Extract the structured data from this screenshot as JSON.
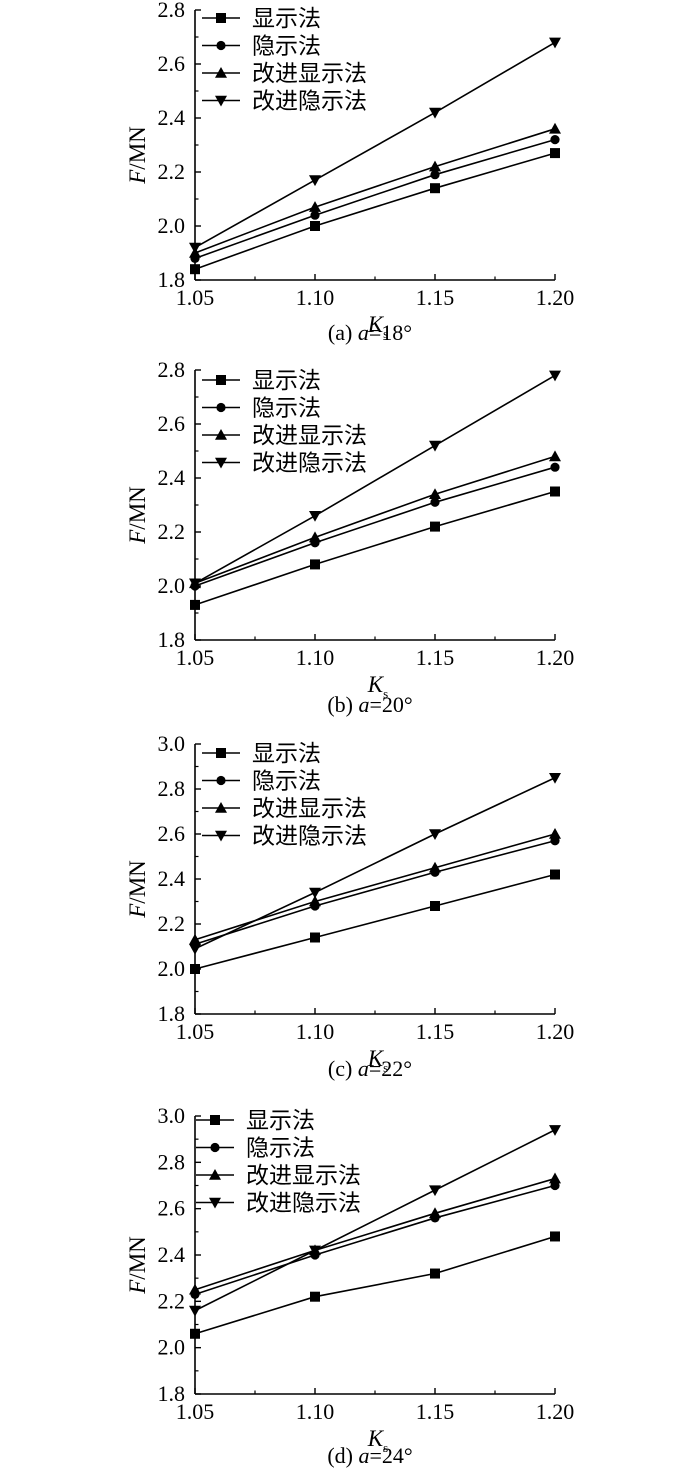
{
  "chart_data": [
    {
      "type": "line",
      "caption_prefix": "(a) ",
      "caption_var": "a",
      "caption_suffix": "=18°",
      "xlabel_main": "K",
      "xlabel_sub": "s",
      "ylabel_var": "F",
      "ylabel_unit": "/MN",
      "x": [
        1.05,
        1.1,
        1.15,
        1.2
      ],
      "x_ticks": [
        "1.05",
        "1.10",
        "1.15",
        "1.20"
      ],
      "xlim": [
        1.05,
        1.2
      ],
      "ylim": [
        1.8,
        2.8
      ],
      "y_ticks": [
        "1.8",
        "2.0",
        "2.2",
        "2.4",
        "2.6",
        "2.8"
      ],
      "grid": false,
      "legend_position": "top-left",
      "series": [
        {
          "name": "显示法",
          "marker": "square",
          "values": [
            1.84,
            2.0,
            2.14,
            2.27
          ]
        },
        {
          "name": "隐示法",
          "marker": "circle",
          "values": [
            1.88,
            2.04,
            2.19,
            2.32
          ]
        },
        {
          "name": "改进显示法",
          "marker": "triangle-up",
          "values": [
            1.9,
            2.07,
            2.22,
            2.36
          ]
        },
        {
          "name": "改进隐示法",
          "marker": "triangle-down",
          "values": [
            1.92,
            2.17,
            2.42,
            2.68
          ]
        }
      ]
    },
    {
      "type": "line",
      "caption_prefix": "(b) ",
      "caption_var": "a",
      "caption_suffix": "=20°",
      "xlabel_main": "K",
      "xlabel_sub": "s",
      "ylabel_var": "F",
      "ylabel_unit": "/MN",
      "x": [
        1.05,
        1.1,
        1.15,
        1.2
      ],
      "x_ticks": [
        "1.05",
        "1.10",
        "1.15",
        "1.20"
      ],
      "xlim": [
        1.05,
        1.2
      ],
      "ylim": [
        1.8,
        2.8
      ],
      "y_ticks": [
        "1.8",
        "2.0",
        "2.2",
        "2.4",
        "2.6",
        "2.8"
      ],
      "grid": false,
      "legend_position": "top-left",
      "series": [
        {
          "name": "显示法",
          "marker": "square",
          "values": [
            1.93,
            2.08,
            2.22,
            2.35
          ]
        },
        {
          "name": "隐示法",
          "marker": "circle",
          "values": [
            2.0,
            2.16,
            2.31,
            2.44
          ]
        },
        {
          "name": "改进显示法",
          "marker": "triangle-up",
          "values": [
            2.01,
            2.18,
            2.34,
            2.48
          ]
        },
        {
          "name": "改进隐示法",
          "marker": "triangle-down",
          "values": [
            2.01,
            2.26,
            2.52,
            2.78
          ]
        }
      ]
    },
    {
      "type": "line",
      "caption_prefix": "(c) ",
      "caption_var": "a",
      "caption_suffix": "=22°",
      "xlabel_main": "K",
      "xlabel_sub": "s",
      "ylabel_var": "F",
      "ylabel_unit": "/MN",
      "x": [
        1.05,
        1.1,
        1.15,
        1.2
      ],
      "x_ticks": [
        "1.05",
        "1.10",
        "1.15",
        "1.20"
      ],
      "xlim": [
        1.05,
        1.2
      ],
      "ylim": [
        1.8,
        3.0
      ],
      "y_ticks": [
        "1.8",
        "2.0",
        "2.2",
        "2.4",
        "2.6",
        "2.8",
        "3.0"
      ],
      "grid": false,
      "legend_position": "top-left",
      "series": [
        {
          "name": "显示法",
          "marker": "square",
          "values": [
            2.0,
            2.14,
            2.28,
            2.42
          ]
        },
        {
          "name": "隐示法",
          "marker": "circle",
          "values": [
            2.11,
            2.28,
            2.43,
            2.57
          ]
        },
        {
          "name": "改进显示法",
          "marker": "triangle-up",
          "values": [
            2.13,
            2.3,
            2.45,
            2.6
          ]
        },
        {
          "name": "改进隐示法",
          "marker": "triangle-down",
          "values": [
            2.09,
            2.34,
            2.6,
            2.85
          ]
        }
      ]
    },
    {
      "type": "line",
      "caption_prefix": "(d) ",
      "caption_var": "a",
      "caption_suffix": "=24°",
      "xlabel_main": "K",
      "xlabel_sub": "s",
      "ylabel_var": "F",
      "ylabel_unit": "/MN",
      "x": [
        1.05,
        1.1,
        1.15,
        1.2
      ],
      "x_ticks": [
        "1.05",
        "1.10",
        "1.15",
        "1.20"
      ],
      "xlim": [
        1.05,
        1.2
      ],
      "ylim": [
        1.8,
        3.0
      ],
      "y_ticks": [
        "1.8",
        "2.0",
        "2.2",
        "2.4",
        "2.6",
        "2.8",
        "3.0"
      ],
      "grid": false,
      "legend_position": "top-left",
      "series": [
        {
          "name": "显示法",
          "marker": "square",
          "values": [
            2.06,
            2.22,
            2.32,
            2.48
          ]
        },
        {
          "name": "隐示法",
          "marker": "circle",
          "values": [
            2.23,
            2.4,
            2.56,
            2.7
          ]
        },
        {
          "name": "改进显示法",
          "marker": "triangle-up",
          "values": [
            2.25,
            2.42,
            2.58,
            2.73
          ]
        },
        {
          "name": "改进隐示法",
          "marker": "triangle-down",
          "values": [
            2.16,
            2.42,
            2.68,
            2.94
          ]
        }
      ]
    }
  ],
  "colors": {
    "line": "#000000",
    "background": "#ffffff"
  }
}
